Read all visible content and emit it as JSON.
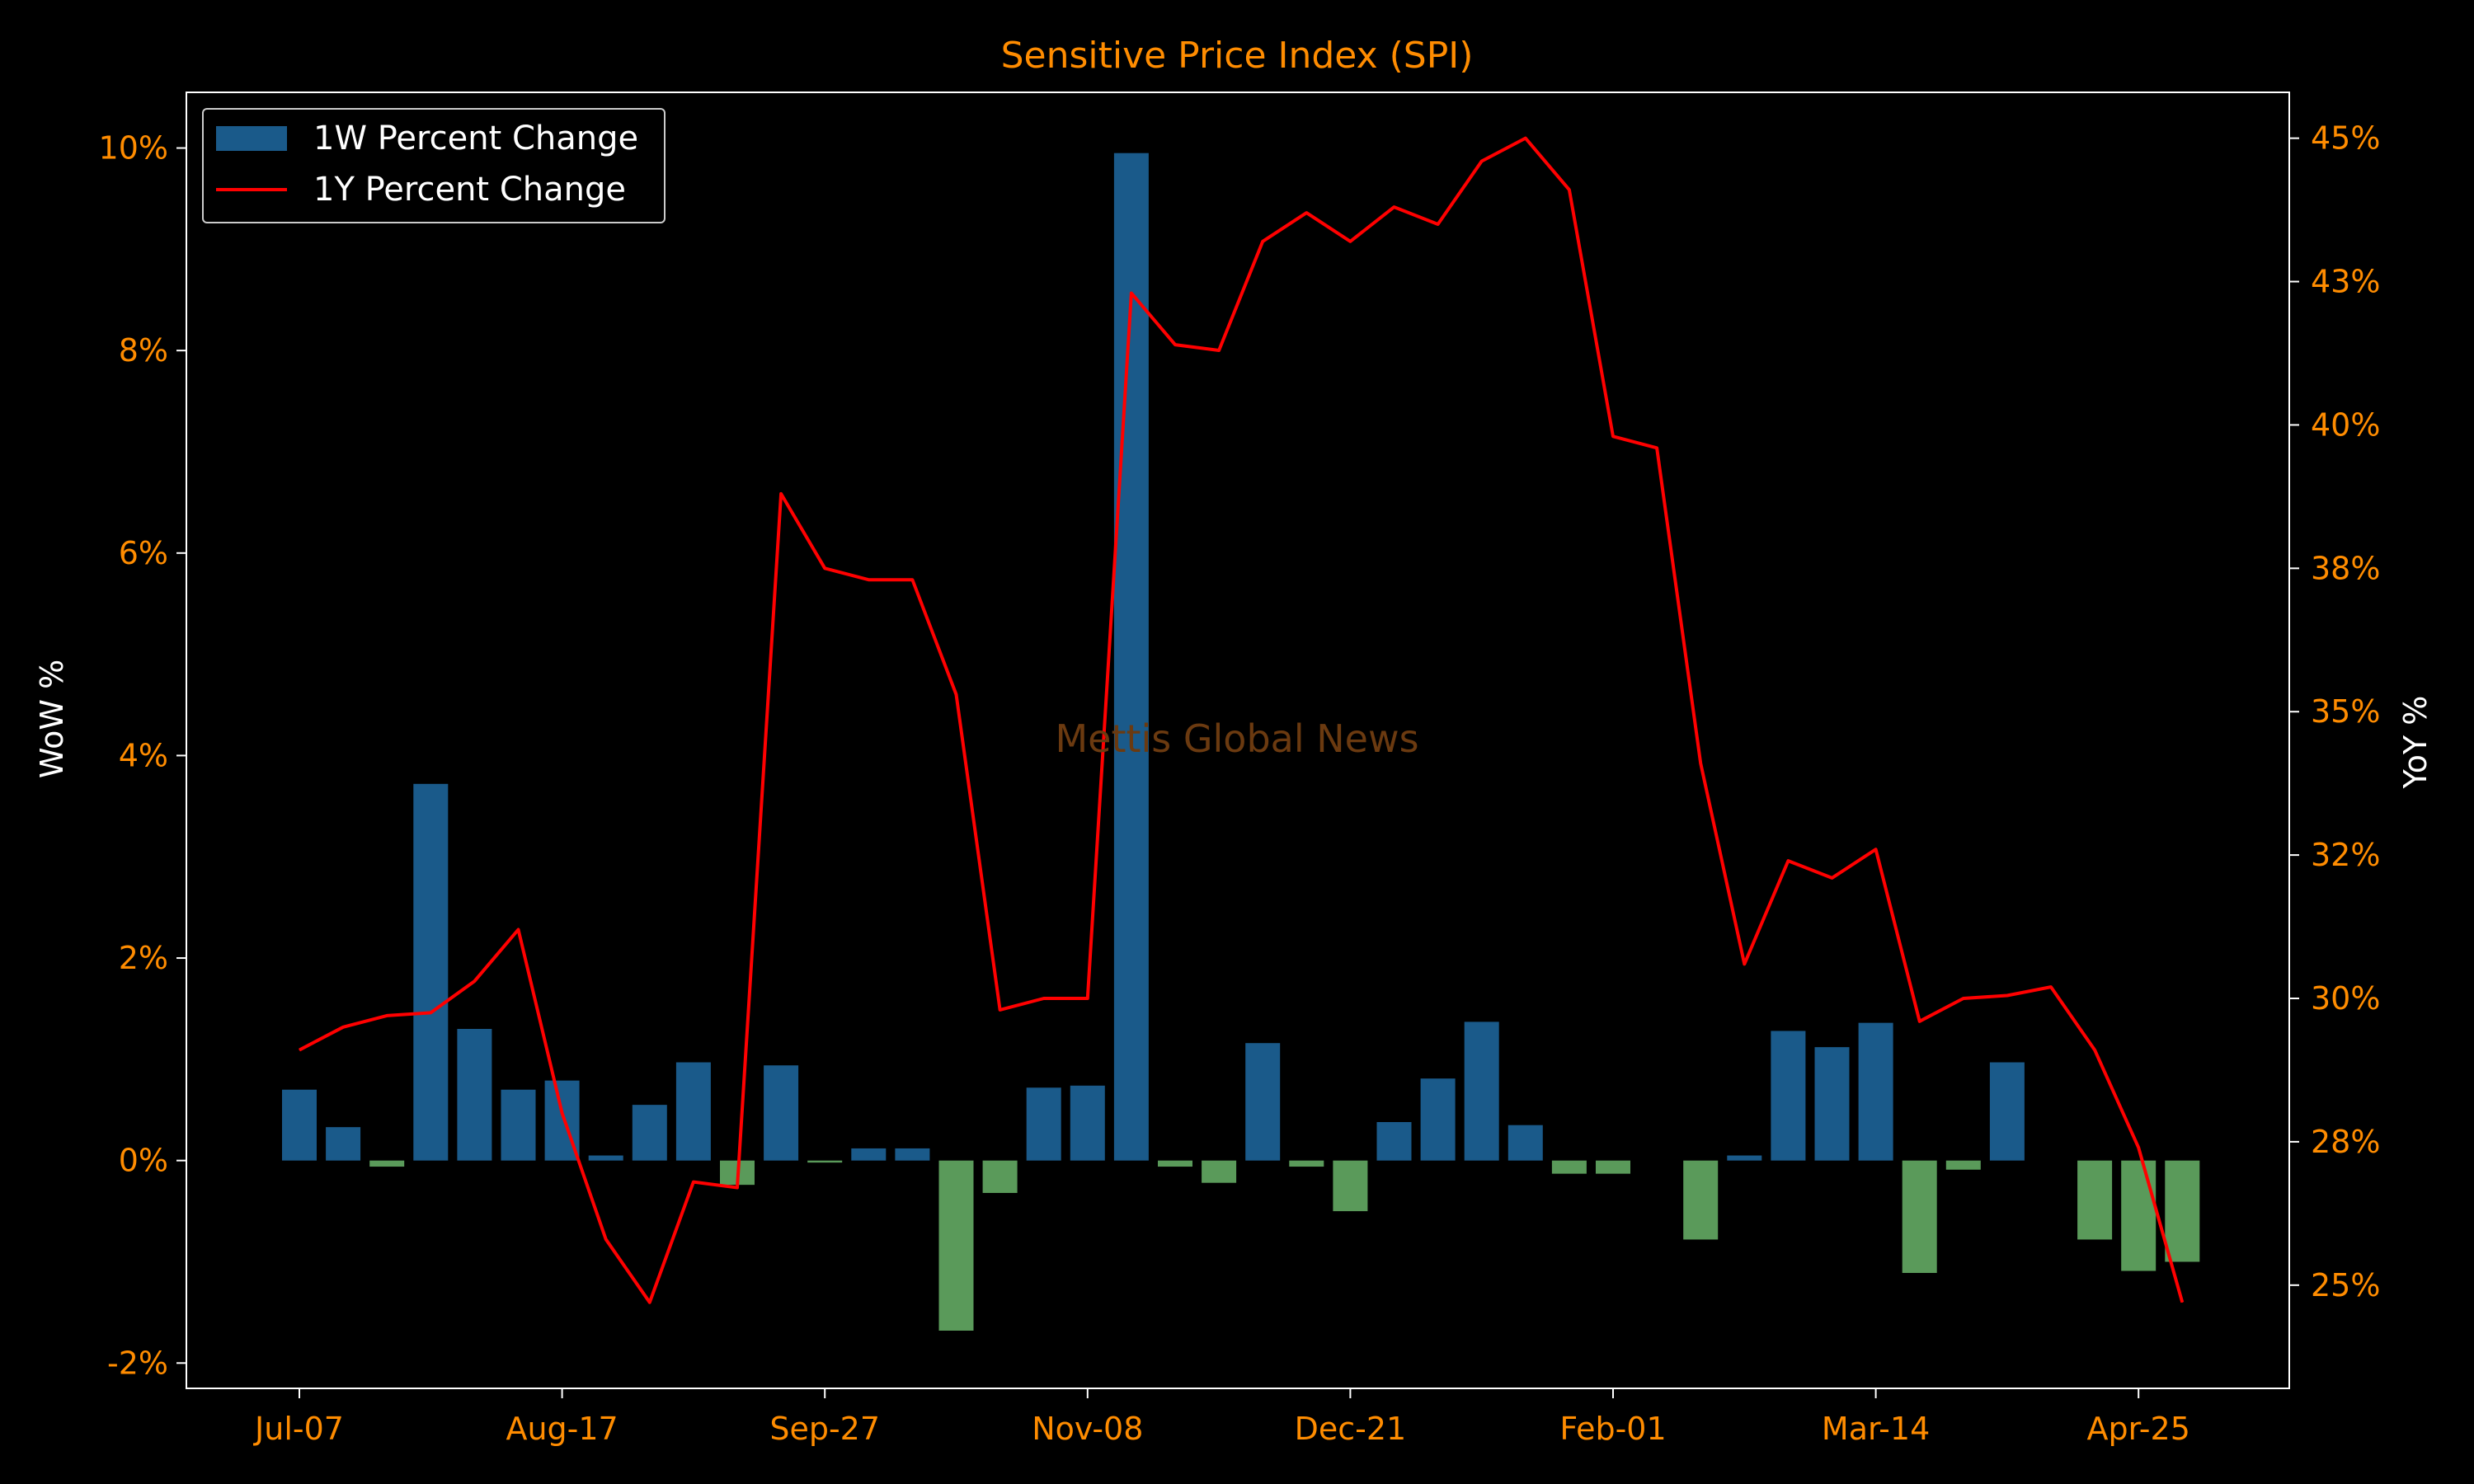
{
  "chart_data": {
    "type": "bar+line",
    "title": "Sensitive Price Index (SPI)",
    "ylabel_left": "WoW %",
    "ylabel_right": "YoY %",
    "watermark": "Mettis Global News",
    "x_tick_labels": [
      "Jul-07",
      "Aug-17",
      "Sep-27",
      "Nov-08",
      "Dec-21",
      "Feb-01",
      "Mar-14",
      "Apr-25"
    ],
    "x_tick_indices": [
      0,
      6,
      12,
      18,
      24,
      30,
      36,
      42
    ],
    "y_left": {
      "range": [
        -2.25,
        10.55
      ],
      "ticks": [
        -2,
        0,
        2,
        4,
        6,
        8,
        10
      ],
      "tick_labels": [
        "-2%",
        "0%",
        "2%",
        "4%",
        "6%",
        "8%",
        "10%"
      ]
    },
    "y_right": {
      "range": [
        23.2,
        45.8
      ],
      "ticks": [
        25,
        27.5,
        30,
        32.5,
        35,
        37.5,
        40,
        42.5,
        45
      ],
      "tick_labels": [
        "25%",
        "28%",
        "30%",
        "32%",
        "35%",
        "38%",
        "40%",
        "43%",
        "45%"
      ]
    },
    "colors": {
      "positive_bar": "#1a5a8a",
      "negative_bar": "#5a9a5a",
      "line": "#ff0000",
      "tick": "#ff8c00",
      "title": "#ff8c00",
      "axis_label": "#ffffff",
      "spine": "#ffffff",
      "watermark": "#6b3a10"
    },
    "legend": {
      "placement": "top-left"
    },
    "series": [
      {
        "name": "1W Percent Change",
        "type": "bar",
        "values": [
          0.7,
          0.33,
          -0.06,
          3.72,
          1.3,
          0.7,
          0.79,
          0.05,
          0.55,
          0.97,
          -0.24,
          0.94,
          -0.02,
          0.12,
          0.12,
          -1.68,
          -0.32,
          0.72,
          0.74,
          9.95,
          -0.06,
          -0.22,
          1.16,
          -0.06,
          -0.5,
          0.38,
          0.81,
          1.37,
          0.35,
          -0.13,
          -0.13,
          0.0,
          -0.78,
          0.05,
          1.28,
          1.12,
          1.36,
          -1.11,
          -0.09,
          0.97,
          0.0,
          -0.78,
          -1.09,
          -1.0
        ]
      },
      {
        "name": "1Y Percent Change",
        "type": "line",
        "values": [
          29.1,
          29.5,
          29.7,
          29.75,
          30.3,
          31.2,
          28.0,
          25.8,
          24.7,
          26.8,
          26.7,
          38.8,
          37.5,
          37.3,
          37.3,
          35.3,
          29.8,
          30.0,
          30.0,
          42.3,
          41.4,
          41.3,
          43.2,
          43.7,
          43.2,
          43.8,
          43.5,
          44.6,
          45.0,
          44.1,
          39.8,
          39.6,
          34.1,
          30.6,
          32.4,
          32.1,
          32.6,
          29.6,
          30.0,
          30.05,
          30.2,
          29.1,
          27.4,
          24.7
        ]
      }
    ]
  }
}
